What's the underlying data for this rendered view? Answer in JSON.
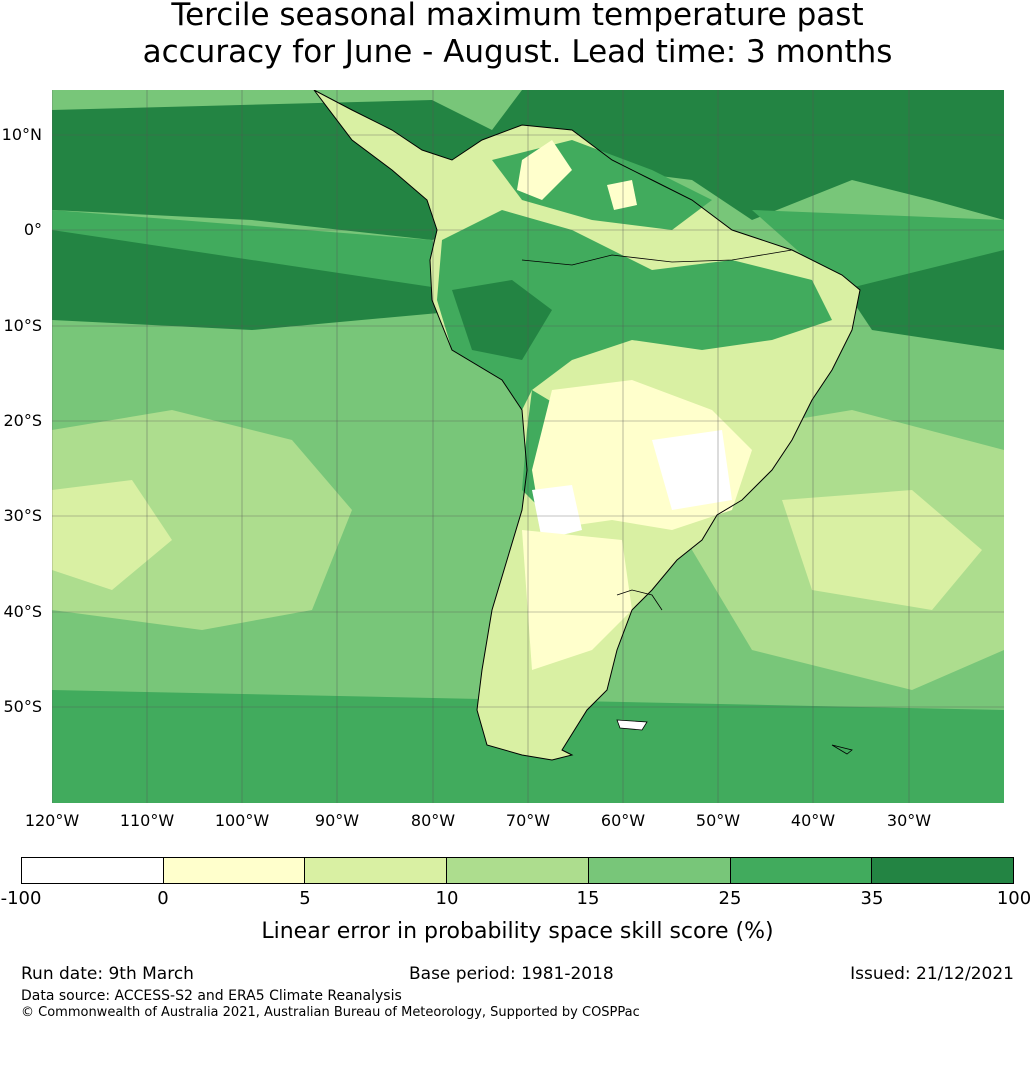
{
  "title": {
    "line1": "Tercile seasonal maximum temperature past",
    "line2": "accuracy for June - August. Lead time: 3 months"
  },
  "map": {
    "lat_labels": [
      "10°N",
      "0°",
      "10°S",
      "20°S",
      "30°S",
      "40°S",
      "50°S"
    ],
    "lon_labels": [
      "120°W",
      "110°W",
      "100°W",
      "90°W",
      "80°W",
      "70°W",
      "60°W",
      "50°W",
      "40°W",
      "30°W"
    ],
    "ocean_color": "#78c679",
    "land_color": "#d9f0a3",
    "coastline_color": "#000000",
    "gridline_color": "#555555"
  },
  "colorbar": {
    "ticks": [
      "-100",
      "0",
      "5",
      "10",
      "15",
      "25",
      "35",
      "100"
    ],
    "colors": [
      "#ffffff",
      "#ffffcc",
      "#d9f0a3",
      "#addd8e",
      "#78c679",
      "#41ab5d",
      "#238443"
    ],
    "label": "Linear error in probability space skill score (%)"
  },
  "footer": {
    "run_date": "Run date: 9th March",
    "base_period": "Base period: 1981-2018",
    "issued": "Issued: 21/12/2021",
    "data_source": "Data source: ACCESS-S2 and ERA5 Climate Reanalysis",
    "copyright": "© Commonwealth of Australia 2021, Australian Bureau of Meteorology, Supported by COSPPac"
  }
}
